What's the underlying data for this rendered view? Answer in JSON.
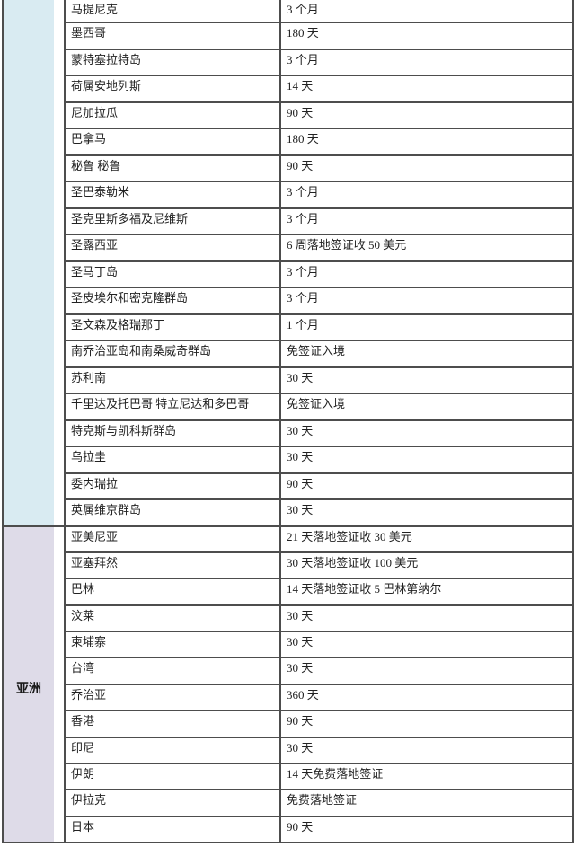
{
  "table": {
    "border_color": "#4d4d4d",
    "sections": [
      {
        "color": "#d9ebf2",
        "rows": [
          {
            "country": "马提尼克",
            "visa": "3 个月"
          },
          {
            "country": "墨西哥",
            "visa": "180 天"
          },
          {
            "country": "蒙特塞拉特岛",
            "visa": "3 个月"
          },
          {
            "country": "荷属安地列斯",
            "visa": "14 天"
          },
          {
            "country": "尼加拉瓜",
            "visa": "90 天"
          },
          {
            "country": "巴拿马",
            "visa": "180 天"
          },
          {
            "country": "秘鲁 秘鲁",
            "visa": "90 天"
          },
          {
            "country": "圣巴泰勒米",
            "visa": "3 个月"
          },
          {
            "country": "圣克里斯多福及尼维斯",
            "visa": "3 个月"
          },
          {
            "country": "圣露西亚",
            "visa": "6 周落地签证收 50 美元"
          },
          {
            "country": "圣马丁岛",
            "visa": "3 个月"
          },
          {
            "country": "圣皮埃尔和密克隆群岛",
            "visa": "3 个月"
          },
          {
            "country": "圣文森及格瑞那丁",
            "visa": "1 个月"
          },
          {
            "country": "南乔治亚岛和南桑威奇群岛",
            "visa": "免签证入境"
          },
          {
            "country": "苏利南",
            "visa": "30 天"
          },
          {
            "country": "千里达及托巴哥 特立尼达和多巴哥",
            "visa": "免签证入境"
          },
          {
            "country": "特克斯与凯科斯群岛",
            "visa": "30 天"
          },
          {
            "country": "乌拉圭",
            "visa": "30 天"
          },
          {
            "country": "委内瑞拉",
            "visa": "90 天"
          },
          {
            "country": "英属维京群岛",
            "visa": "30 天"
          }
        ]
      },
      {
        "label": "亚洲",
        "color": "#dedbe8",
        "rows": [
          {
            "country": "亚美尼亚",
            "visa": "21 天落地签证收 30 美元"
          },
          {
            "country": "亚塞拜然",
            "visa": "30 天落地签证收 100 美元"
          },
          {
            "country": "巴林",
            "visa": "14 天落地签证收 5 巴林第纳尔"
          },
          {
            "country": "汶莱",
            "visa": "30 天"
          },
          {
            "country": "柬埔寨",
            "visa": "30 天"
          },
          {
            "country": "台湾",
            "visa": "30 天"
          },
          {
            "country": "乔治亚",
            "visa": "360 天"
          },
          {
            "country": "香港",
            "visa": "90 天"
          },
          {
            "country": "印尼",
            "visa": "30 天"
          },
          {
            "country": "伊朗",
            "visa": "14 天免费落地签证"
          },
          {
            "country": "伊拉克",
            "visa": "免费落地签证"
          },
          {
            "country": "日本",
            "visa": "90 天"
          }
        ]
      }
    ]
  }
}
